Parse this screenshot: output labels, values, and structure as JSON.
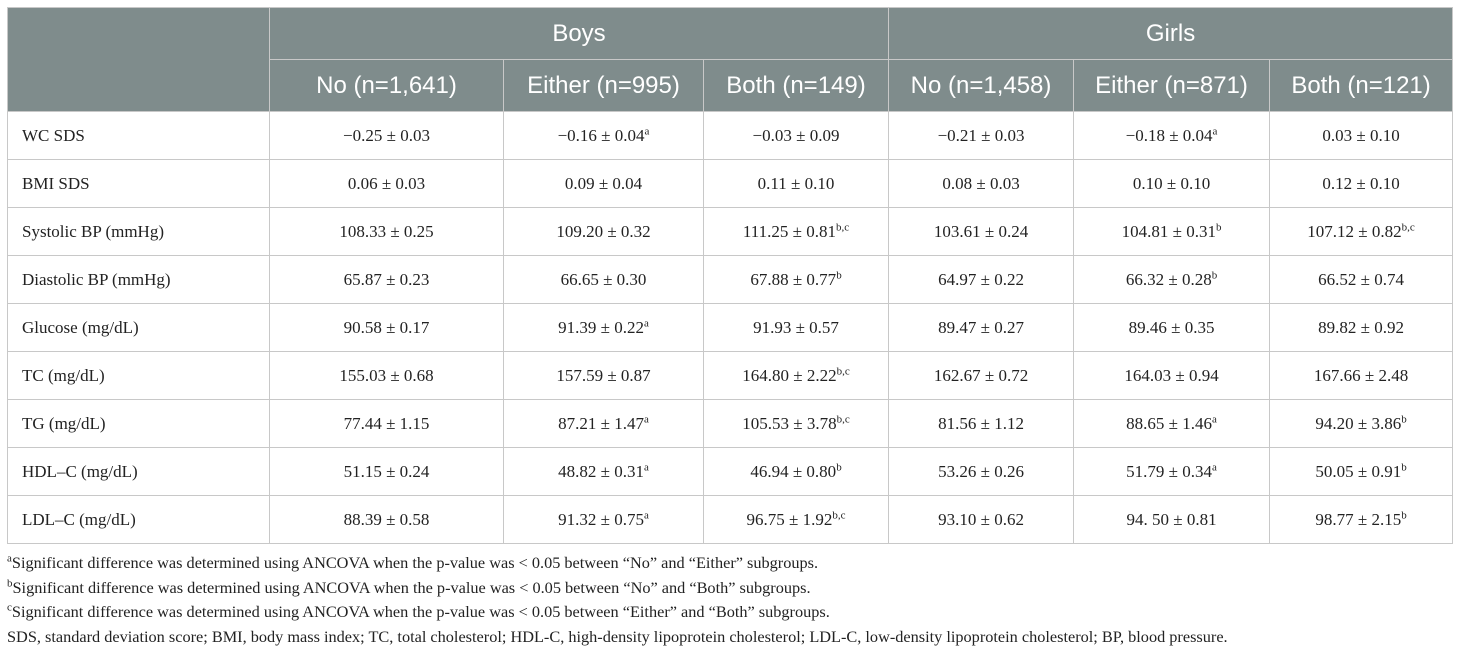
{
  "table": {
    "groups": [
      "Boys",
      "Girls"
    ],
    "columns": [
      "No (n=1,641)",
      "Either (n=995)",
      "Both (n=149)",
      "No (n=1,458)",
      "Either (n=871)",
      "Both (n=121)"
    ],
    "rows": [
      {
        "label": "WC SDS",
        "cells": [
          [
            "−0.25 ± 0.03",
            ""
          ],
          [
            "−0.16 ± 0.04",
            "a"
          ],
          [
            "−0.03 ± 0.09",
            ""
          ],
          [
            "−0.21 ± 0.03",
            ""
          ],
          [
            "−0.18 ± 0.04",
            "a"
          ],
          [
            "0.03 ± 0.10",
            ""
          ]
        ]
      },
      {
        "label": "BMI SDS",
        "cells": [
          [
            "0.06 ± 0.03",
            ""
          ],
          [
            "0.09 ± 0.04",
            ""
          ],
          [
            "0.11 ± 0.10",
            ""
          ],
          [
            "0.08 ± 0.03",
            ""
          ],
          [
            "0.10 ± 0.10",
            ""
          ],
          [
            "0.12 ± 0.10",
            ""
          ]
        ]
      },
      {
        "label": "Systolic BP (mmHg)",
        "cells": [
          [
            "108.33 ± 0.25",
            ""
          ],
          [
            "109.20 ± 0.32",
            ""
          ],
          [
            "111.25 ± 0.81",
            "b,c"
          ],
          [
            "103.61 ± 0.24",
            ""
          ],
          [
            "104.81 ± 0.31",
            "b"
          ],
          [
            "107.12 ± 0.82",
            "b,c"
          ]
        ]
      },
      {
        "label": "Diastolic BP (mmHg)",
        "cells": [
          [
            "65.87 ± 0.23",
            ""
          ],
          [
            "66.65 ± 0.30",
            ""
          ],
          [
            "67.88 ± 0.77",
            "b"
          ],
          [
            "64.97 ± 0.22",
            ""
          ],
          [
            "66.32 ± 0.28",
            "b"
          ],
          [
            "66.52 ± 0.74",
            ""
          ]
        ]
      },
      {
        "label": "Glucose (mg/dL)",
        "cells": [
          [
            "90.58 ± 0.17",
            ""
          ],
          [
            "91.39 ± 0.22",
            "a"
          ],
          [
            "91.93 ± 0.57",
            ""
          ],
          [
            "89.47 ± 0.27",
            ""
          ],
          [
            "89.46 ± 0.35",
            ""
          ],
          [
            "89.82 ± 0.92",
            ""
          ]
        ]
      },
      {
        "label": "TC (mg/dL)",
        "cells": [
          [
            "155.03 ± 0.68",
            ""
          ],
          [
            "157.59 ± 0.87",
            ""
          ],
          [
            "164.80 ± 2.22",
            "b,c"
          ],
          [
            "162.67 ± 0.72",
            ""
          ],
          [
            "164.03 ± 0.94",
            ""
          ],
          [
            "167.66 ± 2.48",
            ""
          ]
        ]
      },
      {
        "label": "TG (mg/dL)",
        "cells": [
          [
            "77.44 ± 1.15",
            ""
          ],
          [
            "87.21 ± 1.47",
            "a"
          ],
          [
            "105.53 ± 3.78",
            "b,c"
          ],
          [
            "81.56 ± 1.12",
            ""
          ],
          [
            "88.65 ± 1.46",
            "a"
          ],
          [
            "94.20 ± 3.86",
            "b"
          ]
        ]
      },
      {
        "label": "HDL–C (mg/dL)",
        "cells": [
          [
            "51.15 ± 0.24",
            ""
          ],
          [
            "48.82 ± 0.31",
            "a"
          ],
          [
            "46.94 ± 0.80",
            "b"
          ],
          [
            "53.26 ± 0.26",
            ""
          ],
          [
            "51.79 ± 0.34",
            "a"
          ],
          [
            "50.05 ± 0.91",
            "b"
          ]
        ]
      },
      {
        "label": "LDL–C (mg/dL)",
        "cells": [
          [
            "88.39 ± 0.58",
            ""
          ],
          [
            "91.32 ± 0.75",
            "a"
          ],
          [
            "96.75 ± 1.92",
            "b,c"
          ],
          [
            "93.10 ± 0.62",
            ""
          ],
          [
            "94. 50 ± 0.81",
            ""
          ],
          [
            "98.77 ± 2.15",
            "b"
          ]
        ]
      }
    ]
  },
  "footnotes": [
    {
      "mark": "a",
      "text": "Significant difference was determined using ANCOVA when the p-value was < 0.05 between “No” and “Either” subgroups."
    },
    {
      "mark": "b",
      "text": "Significant difference was determined using ANCOVA when the p-value was < 0.05 between “No” and “Both” subgroups."
    },
    {
      "mark": "c",
      "text": "Significant difference was determined using ANCOVA when the p-value was < 0.05 between “Either” and “Both” subgroups."
    },
    {
      "mark": "",
      "text": "SDS, standard deviation score; BMI, body mass index; TC, total cholesterol; HDL-C, high-density lipoprotein cholesterol; LDL-C, low-density lipoprotein cholesterol; BP, blood pressure."
    }
  ],
  "colors": {
    "header_bg": "#7f8c8c",
    "header_text": "#ffffff",
    "grid": "#c8c8c8"
  }
}
